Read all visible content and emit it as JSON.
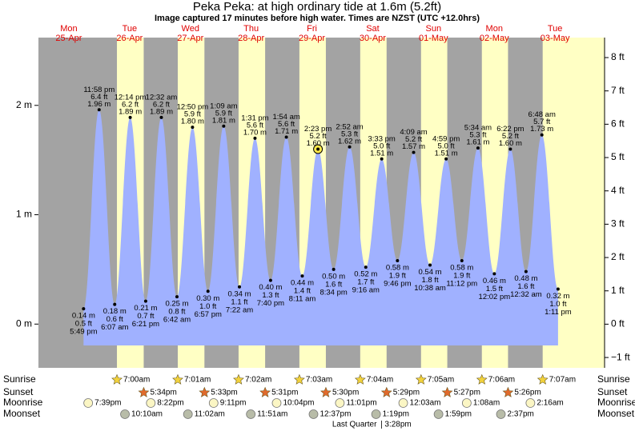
{
  "chart_data": {
    "type": "tide",
    "title": "Peka Peka: at high  ordinary tide at 1.6m (5.2ft)",
    "subtitle": "Image captured 17 minutes before high water. Times are NZST (UTC +12.0hrs)",
    "ylim": [
      -0.4,
      2.62
    ],
    "yticks": [
      {
        "value": 0,
        "label": "0 m"
      },
      {
        "value": 1,
        "label": "1 m"
      },
      {
        "value": 2,
        "label": "2 m"
      }
    ],
    "y2lim": [
      -1.31,
      8.6
    ],
    "y2ticks": [
      {
        "value": -1,
        "label": "−1 ft"
      },
      {
        "value": 0,
        "label": "0 ft"
      },
      {
        "value": 1,
        "label": "1 ft"
      },
      {
        "value": 2,
        "label": "2 ft"
      },
      {
        "value": 3,
        "label": "3 ft"
      },
      {
        "value": 4,
        "label": "4 ft"
      },
      {
        "value": 5,
        "label": "5 ft"
      },
      {
        "value": 6,
        "label": "6 ft"
      },
      {
        "value": 7,
        "label": "7 ft"
      },
      {
        "value": 8,
        "label": "8 ft"
      }
    ],
    "colors": {
      "night": "#a3a3a3",
      "day": "#ffffc4",
      "water": "#a0b1ff",
      "day_label": "#e00000",
      "sunrise": "#f2d23c",
      "sunset": "#e06a2c",
      "moonrise": "#fbf6c4",
      "moonset": "#b8bca8"
    },
    "row_labels": {
      "sunrise": "Sunrise",
      "sunset": "Sunset",
      "moonrise": "Moonrise",
      "moonset": "Moonset"
    },
    "days": [
      {
        "weekday": "Mon",
        "date": "25-Apr",
        "moonrise": "7:39pm",
        "events": [
          {
            "time": "5:49 pm",
            "height": 0.14,
            "height_label": "0.14 m",
            "ft_label": "0.5 ft"
          },
          {
            "time": "11:58 pm",
            "height": 1.96,
            "height_label": "1.96 m",
            "ft_label": "6.4 ft"
          }
        ]
      },
      {
        "weekday": "Tue",
        "date": "26-Apr",
        "sunrise": "7:00am",
        "sunset": "5:34pm",
        "moonrise": "8:22pm",
        "moonset": "10:10am",
        "events": [
          {
            "time": "6:07 am",
            "height": 0.18,
            "height_label": "0.18 m",
            "ft_label": "0.6 ft"
          },
          {
            "time": "12:14 pm",
            "height": 1.89,
            "height_label": "1.89 m",
            "ft_label": "6.2 ft"
          },
          {
            "time": "6:21 pm",
            "height": 0.21,
            "height_label": "0.21 m",
            "ft_label": "0.7 ft"
          }
        ]
      },
      {
        "weekday": "Wed",
        "date": "27-Apr",
        "sunrise": "7:01am",
        "sunset": "5:33pm",
        "moonrise": "9:11pm",
        "moonset": "11:02am",
        "events": [
          {
            "time": "12:32 am",
            "height": 1.89,
            "height_label": "1.89 m",
            "ft_label": "6.2 ft"
          },
          {
            "time": "6:42 am",
            "height": 0.25,
            "height_label": "0.25 m",
            "ft_label": "0.8 ft"
          },
          {
            "time": "12:50 pm",
            "height": 1.8,
            "height_label": "1.80 m",
            "ft_label": "5.9 ft"
          },
          {
            "time": "6:57 pm",
            "height": 0.3,
            "height_label": "0.30 m",
            "ft_label": "1.0 ft"
          }
        ]
      },
      {
        "weekday": "Thu",
        "date": "28-Apr",
        "sunrise": "7:02am",
        "sunset": "5:31pm",
        "moonrise": "10:04pm",
        "moonset": "11:51am",
        "events": [
          {
            "time": "1:09 am",
            "height": 1.81,
            "height_label": "1.81 m",
            "ft_label": "5.9 ft"
          },
          {
            "time": "7:22 am",
            "height": 0.34,
            "height_label": "0.34 m",
            "ft_label": "1.1 ft"
          },
          {
            "time": "1:31 pm",
            "height": 1.7,
            "height_label": "1.70 m",
            "ft_label": "5.6 ft"
          },
          {
            "time": "7:40 pm",
            "height": 0.4,
            "height_label": "0.40 m",
            "ft_label": "1.3 ft"
          }
        ]
      },
      {
        "weekday": "Fri",
        "date": "29-Apr",
        "sunrise": "7:03am",
        "sunset": "5:30pm",
        "moonrise": "11:01pm",
        "moonset": "12:37pm",
        "events": [
          {
            "time": "1:54 am",
            "height": 1.71,
            "height_label": "1.71 m",
            "ft_label": "5.6 ft"
          },
          {
            "time": "8:11 am",
            "height": 0.44,
            "height_label": "0.44 m",
            "ft_label": "1.4 ft"
          },
          {
            "time": "2:23 pm",
            "height": 1.6,
            "height_label": "1.60 m",
            "ft_label": "5.2 ft",
            "highlighted": true
          },
          {
            "time": "8:34 pm",
            "height": 0.5,
            "height_label": "0.50 m",
            "ft_label": "1.6 ft"
          }
        ]
      },
      {
        "weekday": "Sat",
        "date": "30-Apr",
        "sunrise": "7:04am",
        "sunset": "5:29pm",
        "moonset": "1:19pm",
        "moon_phase": {
          "name": "Last Quarter",
          "time": "3:28pm"
        },
        "events": [
          {
            "time": "2:52 am",
            "height": 1.62,
            "height_label": "1.62 m",
            "ft_label": "5.3 ft"
          },
          {
            "time": "9:16 am",
            "height": 0.52,
            "height_label": "0.52 m",
            "ft_label": "1.7 ft"
          },
          {
            "time": "3:33 pm",
            "height": 1.51,
            "height_label": "1.51 m",
            "ft_label": "5.0 ft"
          },
          {
            "time": "9:46 pm",
            "height": 0.58,
            "height_label": "0.58 m",
            "ft_label": "1.9 ft"
          }
        ]
      },
      {
        "weekday": "Sun",
        "date": "01-May",
        "sunrise": "7:05am",
        "sunset": "5:27pm",
        "moonrise": "12:03am",
        "moonset": "1:59pm",
        "events": [
          {
            "time": "4:09 am",
            "height": 1.57,
            "height_label": "1.57 m",
            "ft_label": "5.2 ft"
          },
          {
            "time": "10:38 am",
            "height": 0.54,
            "height_label": "0.54 m",
            "ft_label": "1.8 ft"
          },
          {
            "time": "4:59 pm",
            "height": 1.51,
            "height_label": "1.51 m",
            "ft_label": "5.0 ft"
          },
          {
            "time": "11:12 pm",
            "height": 0.58,
            "height_label": "0.58 m",
            "ft_label": "1.9 ft"
          }
        ]
      },
      {
        "weekday": "Mon",
        "date": "02-May",
        "sunrise": "7:06am",
        "sunset": "5:26pm",
        "moonrise": "1:08am",
        "moonset": "2:37pm",
        "events": [
          {
            "time": "5:34 am",
            "height": 1.61,
            "height_label": "1.61 m",
            "ft_label": "5.3 ft"
          },
          {
            "time": "12:02 pm",
            "height": 0.46,
            "height_label": "0.46 m",
            "ft_label": "1.5 ft"
          },
          {
            "time": "6:22 pm",
            "height": 1.6,
            "height_label": "1.60 m",
            "ft_label": "5.2 ft"
          }
        ]
      },
      {
        "weekday": "Tue",
        "date": "03-May",
        "sunrise": "7:07am",
        "moonrise": "2:16am",
        "events": [
          {
            "time": "12:32 am",
            "height": 0.48,
            "height_label": "0.48 m",
            "ft_label": "1.6 ft"
          },
          {
            "time": "6:48 am",
            "height": 1.73,
            "height_label": "1.73 m",
            "ft_label": "5.7 ft"
          },
          {
            "time": "1:11 pm",
            "height": 0.32,
            "height_label": "0.32 m",
            "ft_label": "1.0 ft"
          }
        ]
      }
    ]
  }
}
